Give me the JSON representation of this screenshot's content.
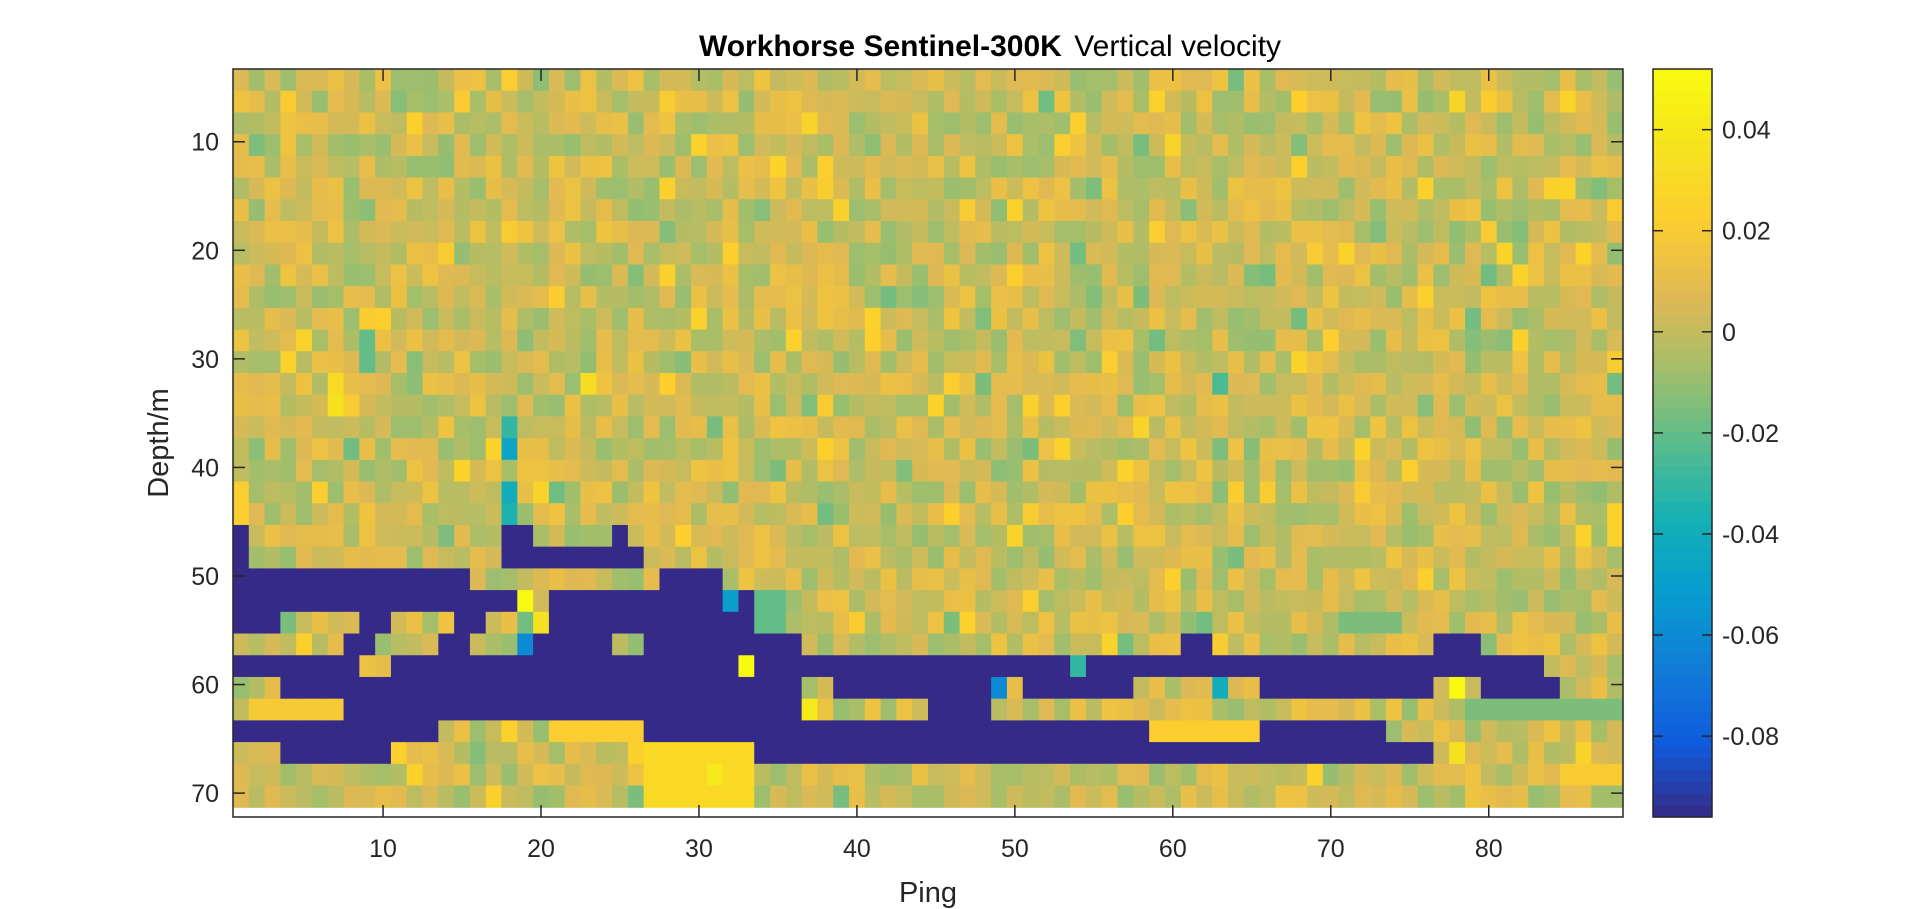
{
  "chart_data": {
    "type": "heatmap",
    "title_bold": "Workhorse Sentinel-300K",
    "title_rest": "Vertical velocity",
    "xlabel": "Ping",
    "ylabel": "Depth/m",
    "xlim": [
      0.5,
      88.5
    ],
    "ylim": [
      3.3,
      72.2
    ],
    "y_reversed": true,
    "x_ticks": [
      10,
      20,
      30,
      40,
      50,
      60,
      70,
      80
    ],
    "y_ticks": [
      10,
      20,
      30,
      40,
      50,
      60,
      70
    ],
    "colorbar": {
      "range": [
        -0.096,
        0.052
      ],
      "ticks": [
        -0.08,
        -0.06,
        -0.04,
        -0.02,
        0,
        0.02,
        0.04
      ],
      "tick_labels": [
        "-0.08",
        "-0.06",
        "-0.04",
        "-0.02",
        "0",
        "0.02",
        "0.04"
      ],
      "colormap": "parula"
    },
    "cells": {
      "pings": 88,
      "bin_size_m": 2,
      "first_bin_center_m": 4.3,
      "bins": 34,
      "background_value_range": [
        -0.01,
        0.015
      ],
      "masked_value": -0.096
    },
    "masked_regions": [
      {
        "pings": [
          1,
          1
        ],
        "depth_m": [
          46,
          50
        ]
      },
      {
        "pings": [
          1,
          15
        ],
        "depth_m": [
          50,
          52
        ]
      },
      {
        "pings": [
          1,
          18
        ],
        "depth_m": [
          52,
          54
        ]
      },
      {
        "pings": [
          1,
          3
        ],
        "depth_m": [
          54,
          56
        ]
      },
      {
        "pings": [
          9,
          10
        ],
        "depth_m": [
          54,
          56
        ]
      },
      {
        "pings": [
          15,
          16
        ],
        "depth_m": [
          54,
          56
        ]
      },
      {
        "pings": [
          8,
          9
        ],
        "depth_m": [
          56,
          58
        ]
      },
      {
        "pings": [
          14,
          15
        ],
        "depth_m": [
          56,
          58
        ]
      },
      {
        "pings": [
          18,
          19
        ],
        "depth_m": [
          46,
          48
        ]
      },
      {
        "pings": [
          18,
          26
        ],
        "depth_m": [
          48,
          50
        ]
      },
      {
        "pings": [
          25,
          25
        ],
        "depth_m": [
          46,
          48
        ]
      },
      {
        "pings": [
          21,
          26
        ],
        "depth_m": [
          52,
          56
        ]
      },
      {
        "pings": [
          28,
          31
        ],
        "depth_m": [
          50,
          52
        ]
      },
      {
        "pings": [
          27,
          33
        ],
        "depth_m": [
          52,
          56
        ]
      },
      {
        "pings": [
          20,
          24
        ],
        "depth_m": [
          56,
          58
        ]
      },
      {
        "pings": [
          27,
          36
        ],
        "depth_m": [
          56,
          58
        ]
      },
      {
        "pings": [
          1,
          8
        ],
        "depth_m": [
          58,
          60
        ]
      },
      {
        "pings": [
          11,
          83
        ],
        "depth_m": [
          58,
          60
        ]
      },
      {
        "pings": [
          61,
          62
        ],
        "depth_m": [
          56,
          58
        ]
      },
      {
        "pings": [
          77,
          79
        ],
        "depth_m": [
          56,
          58
        ]
      },
      {
        "pings": [
          4,
          36
        ],
        "depth_m": [
          60,
          62
        ]
      },
      {
        "pings": [
          39,
          49
        ],
        "depth_m": [
          60,
          62
        ]
      },
      {
        "pings": [
          51,
          57
        ],
        "depth_m": [
          60,
          62
        ]
      },
      {
        "pings": [
          66,
          76
        ],
        "depth_m": [
          60,
          62
        ]
      },
      {
        "pings": [
          80,
          84
        ],
        "depth_m": [
          60,
          62
        ]
      },
      {
        "pings": [
          8,
          36
        ],
        "depth_m": [
          62,
          64
        ]
      },
      {
        "pings": [
          45,
          48
        ],
        "depth_m": [
          62,
          64
        ]
      },
      {
        "pings": [
          1,
          13
        ],
        "depth_m": [
          64,
          66
        ]
      },
      {
        "pings": [
          27,
          58
        ],
        "depth_m": [
          64,
          66
        ]
      },
      {
        "pings": [
          66,
          73
        ],
        "depth_m": [
          64,
          66
        ]
      },
      {
        "pings": [
          4,
          10
        ],
        "depth_m": [
          66,
          68
        ]
      },
      {
        "pings": [
          34,
          76
        ],
        "depth_m": [
          66,
          68
        ]
      }
    ],
    "highlights": [
      {
        "ping": 7,
        "depth_m": 31.5,
        "value": 0.03
      },
      {
        "ping": 7,
        "depth_m": 33.5,
        "value": 0.035
      },
      {
        "ping": 9,
        "depth_m": 28.5,
        "value": -0.02
      },
      {
        "ping": 9,
        "depth_m": 30.5,
        "value": -0.02
      },
      {
        "ping": 23,
        "depth_m": 31.5,
        "value": 0.032
      },
      {
        "ping": 18,
        "depth_m": 35.5,
        "value": -0.03
      },
      {
        "ping": 18,
        "depth_m": 38.5,
        "value": -0.045
      },
      {
        "ping": 18,
        "depth_m": 41.5,
        "value": -0.04
      },
      {
        "ping": 18,
        "depth_m": 44.5,
        "value": -0.035
      },
      {
        "ping": 19,
        "depth_m": 52.5,
        "value": 0.05
      },
      {
        "ping": 20,
        "depth_m": 54.5,
        "value": 0.035
      },
      {
        "ping": 19,
        "depth_m": 56.5,
        "value": -0.06
      },
      {
        "ping": 32,
        "depth_m": 51.5,
        "value": -0.05
      },
      {
        "ping": 33,
        "depth_m": 58.5,
        "value": 0.05
      },
      {
        "ping": 49,
        "depth_m": 60.5,
        "value": -0.06
      },
      {
        "ping": 78,
        "depth_m": 60.5,
        "value": 0.05
      },
      {
        "ping": 63,
        "depth_m": 60.5,
        "value": -0.04
      },
      {
        "ping": 63,
        "depth_m": 31.5,
        "value": -0.025
      },
      {
        "ping": 54,
        "depth_m": 58.5,
        "value": -0.03
      },
      {
        "ping": 37,
        "depth_m": 62.5,
        "value": 0.04
      },
      {
        "ping": 31,
        "depth_m": 67.5,
        "value": 0.04
      },
      {
        "ping": 78,
        "depth_m": 66.5,
        "value": 0.035
      }
    ],
    "warm_patches": [
      {
        "pings": [
          27,
          33
        ],
        "depth_m": [
          66,
          72
        ],
        "value": 0.028
      },
      {
        "pings": [
          21,
          26
        ],
        "depth_m": [
          64,
          66
        ],
        "value": 0.026
      },
      {
        "pings": [
          59,
          65
        ],
        "depth_m": [
          64,
          66
        ],
        "value": 0.025
      },
      {
        "pings": [
          2,
          7
        ],
        "depth_m": [
          62,
          64
        ],
        "value": 0.025
      },
      {
        "pings": [
          85,
          88
        ],
        "depth_m": [
          68,
          70
        ],
        "value": 0.022
      }
    ],
    "cool_patches": [
      {
        "pings": [
          34,
          35
        ],
        "depth_m": [
          52,
          56
        ],
        "value": -0.02
      },
      {
        "pings": [
          71,
          74
        ],
        "depth_m": [
          54,
          56
        ],
        "value": -0.015
      },
      {
        "pings": [
          79,
          88
        ],
        "depth_m": [
          62,
          64
        ],
        "value": -0.015
      }
    ]
  }
}
